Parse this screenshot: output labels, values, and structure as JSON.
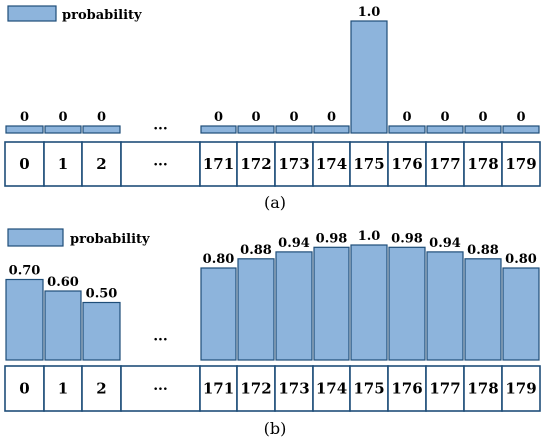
{
  "legend_label": "probability",
  "ellipsis": "···",
  "colors": {
    "bar_fill": "#8db4dc",
    "stroke": "#1f4e79"
  },
  "chart_data": [
    {
      "type": "bar",
      "caption": "(a)",
      "categories": [
        "0",
        "1",
        "2",
        "···",
        "171",
        "172",
        "173",
        "174",
        "175",
        "176",
        "177",
        "178",
        "179"
      ],
      "values": [
        0,
        0,
        0,
        null,
        0,
        0,
        0,
        0,
        1.0,
        0,
        0,
        0,
        0
      ],
      "value_labels": [
        "0",
        "0",
        "0",
        "",
        "0",
        "0",
        "0",
        "0",
        "1.0",
        "0",
        "0",
        "0",
        "0"
      ],
      "legend": "probability",
      "ylim": [
        0,
        1.0
      ]
    },
    {
      "type": "bar",
      "caption": "(b)",
      "categories": [
        "0",
        "1",
        "2",
        "···",
        "171",
        "172",
        "173",
        "174",
        "175",
        "176",
        "177",
        "178",
        "179"
      ],
      "values": [
        0.7,
        0.6,
        0.5,
        null,
        0.8,
        0.88,
        0.94,
        0.98,
        1.0,
        0.98,
        0.94,
        0.88,
        0.8
      ],
      "value_labels": [
        "0.70",
        "0.60",
        "0.50",
        "",
        "0.80",
        "0.88",
        "0.94",
        "0.98",
        "1.0",
        "0.98",
        "0.94",
        "0.88",
        "0.80"
      ],
      "legend": "probability",
      "ylim": [
        0,
        1.0
      ]
    }
  ]
}
